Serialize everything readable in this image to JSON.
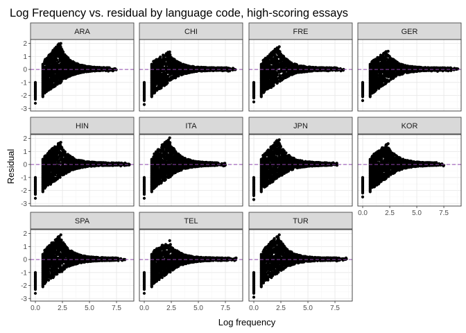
{
  "chart_data": {
    "type": "scatter",
    "title": "Log Frequency vs. residual by language code, high-scoring essays",
    "xlabel": "Log frequency",
    "ylabel": "Residual",
    "xlim": [
      -0.45,
      9.1
    ],
    "ylim": [
      -3.2,
      2.3
    ],
    "x_ticks": [
      0.0,
      2.5,
      5.0,
      7.5
    ],
    "x_tick_labels": [
      "0.0",
      "2.5",
      "5.0",
      "7.5"
    ],
    "y_ticks": [
      -3,
      -2,
      -1,
      0,
      1,
      2
    ],
    "y_tick_labels": [
      "-3",
      "-2",
      "-1",
      "0",
      "1",
      "2"
    ],
    "reference_line": {
      "y": 0,
      "style": "dashed",
      "color": "#8e44ad"
    },
    "grid": true,
    "point_color": "#000000",
    "facets": [
      {
        "label": "ARA",
        "peak": 2.0,
        "min": -2.6,
        "x_max": 7.5
      },
      {
        "label": "CHI",
        "peak": 1.35,
        "min": -2.7,
        "x_max": 8.5
      },
      {
        "label": "FRE",
        "peak": 1.75,
        "min": -2.5,
        "x_max": 8.3
      },
      {
        "label": "GER",
        "peak": 1.4,
        "min": -2.4,
        "x_max": 8.8
      },
      {
        "label": "HIN",
        "peak": 1.7,
        "min": -2.6,
        "x_max": 8.7
      },
      {
        "label": "ITA",
        "peak": 2.05,
        "min": -2.6,
        "x_max": 7.5
      },
      {
        "label": "JPN",
        "peak": 1.9,
        "min": -2.7,
        "x_max": 7.8
      },
      {
        "label": "KOR",
        "peak": 1.6,
        "min": -2.5,
        "x_max": 7.5
      },
      {
        "label": "SPA",
        "peak": 1.9,
        "min": -2.6,
        "x_max": 8.3
      },
      {
        "label": "TEL",
        "peak": 1.45,
        "min": -2.6,
        "x_max": 8.5
      },
      {
        "label": "TUR",
        "peak": 1.9,
        "min": -2.9,
        "x_max": 8.6
      }
    ]
  }
}
